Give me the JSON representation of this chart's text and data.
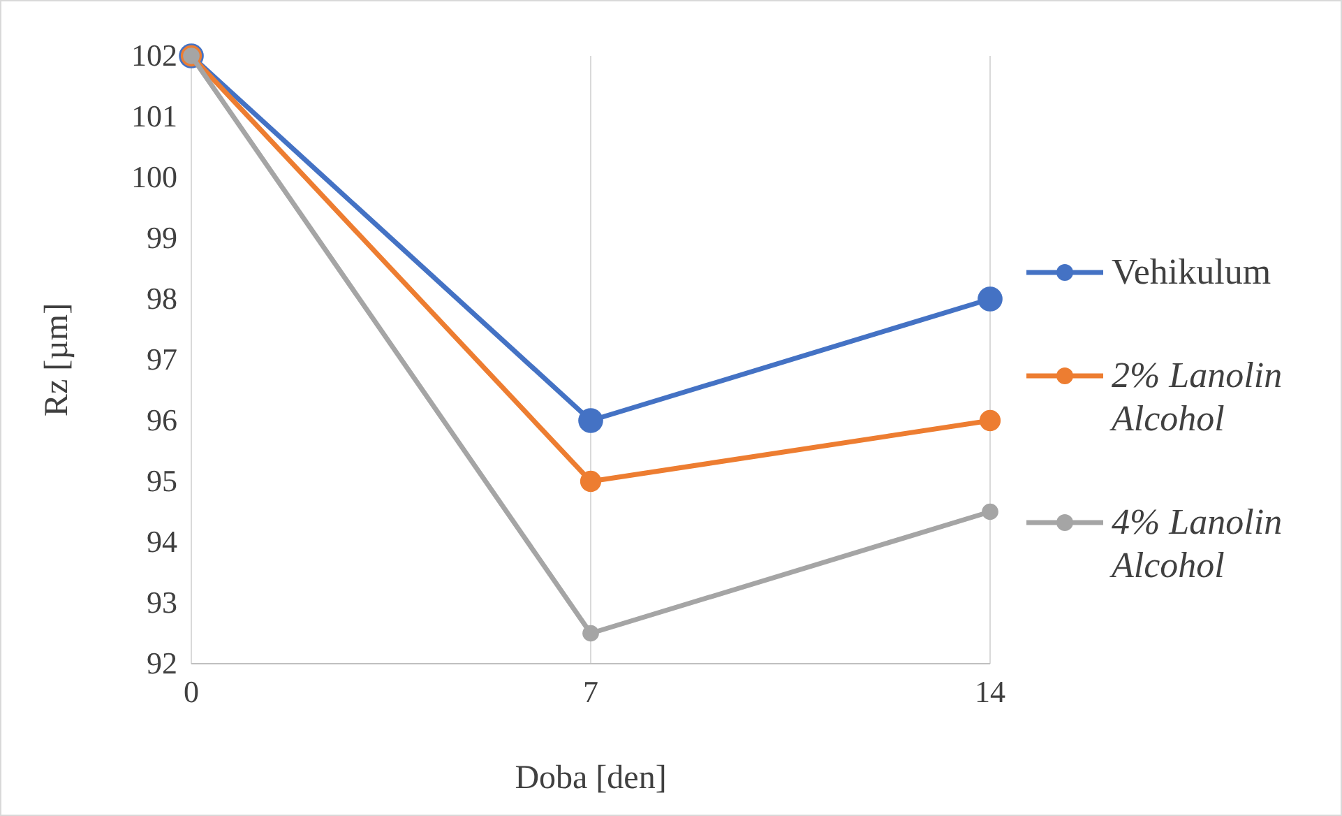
{
  "chart_data": {
    "type": "line",
    "xlabel": "Doba [den]",
    "ylabel": "Rz [µm]",
    "x": [
      0,
      7,
      14
    ],
    "series": [
      {
        "name": "Vehikulum",
        "color": "#4472c4",
        "values": [
          102,
          96,
          98
        ]
      },
      {
        "name": "2% Lanolin Alcohol",
        "color": "#ed7d31",
        "values": [
          102,
          95,
          96
        ]
      },
      {
        "name": "4% Lanolin Alcohol",
        "color": "#a5a5a5",
        "values": [
          102,
          92.5,
          94.5
        ]
      }
    ],
    "xlim": [
      0,
      14
    ],
    "xticks": [
      0,
      7,
      14
    ],
    "ylim": [
      92,
      102
    ],
    "yticks": [
      92,
      93,
      94,
      95,
      96,
      97,
      98,
      99,
      100,
      101,
      102
    ],
    "grid": "x",
    "legend": "right",
    "marker": "circle",
    "line_style": "solid"
  }
}
